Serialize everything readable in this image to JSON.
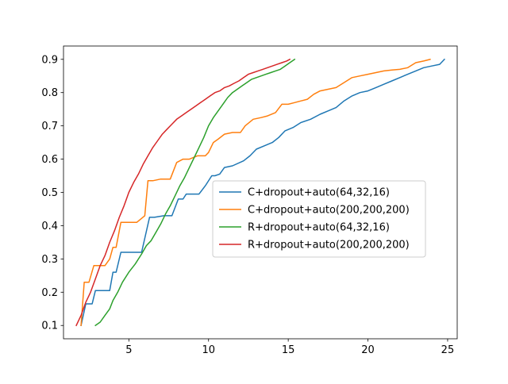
{
  "chart_data": {
    "type": "line",
    "title": "",
    "xlabel": "",
    "ylabel": "",
    "xlim": [
      0.9,
      25.6
    ],
    "ylim": [
      0.06,
      0.94
    ],
    "xticks": [
      5,
      10,
      15,
      20,
      25
    ],
    "xtick_labels": [
      "5",
      "10",
      "15",
      "20",
      "25"
    ],
    "yticks": [
      0.1,
      0.2,
      0.3,
      0.4,
      0.5,
      0.6,
      0.7,
      0.8,
      0.9
    ],
    "ytick_labels": [
      "0.1",
      "0.2",
      "0.3",
      "0.4",
      "0.5",
      "0.6",
      "0.7",
      "0.8",
      "0.9"
    ],
    "grid": false,
    "legend_position": "center-right",
    "series": [
      {
        "name": "C+dropout+auto(64,32,16)",
        "color": "#1f77b4",
        "x": [
          2.0,
          2.3,
          2.7,
          2.9,
          3.1,
          3.4,
          3.8,
          4.0,
          4.2,
          4.5,
          4.6,
          5.2,
          5.8,
          6.3,
          6.6,
          7.2,
          7.7,
          8.1,
          8.4,
          8.6,
          9.1,
          9.4,
          9.8,
          10.2,
          10.4,
          10.7,
          11.0,
          11.5,
          12.2,
          12.6,
          13.0,
          13.5,
          14.0,
          14.4,
          14.8,
          15.3,
          15.8,
          16.4,
          17.0,
          17.5,
          18.0,
          18.5,
          19.0,
          19.5,
          20.0,
          20.5,
          21.0,
          21.5,
          22.0,
          22.5,
          23.0,
          23.5,
          24.0,
          24.5,
          24.8
        ],
        "y": [
          0.1,
          0.165,
          0.165,
          0.205,
          0.205,
          0.205,
          0.205,
          0.26,
          0.26,
          0.32,
          0.32,
          0.32,
          0.32,
          0.425,
          0.425,
          0.43,
          0.43,
          0.48,
          0.48,
          0.495,
          0.495,
          0.495,
          0.52,
          0.55,
          0.55,
          0.555,
          0.575,
          0.58,
          0.595,
          0.61,
          0.63,
          0.64,
          0.65,
          0.665,
          0.685,
          0.695,
          0.71,
          0.72,
          0.735,
          0.745,
          0.755,
          0.775,
          0.79,
          0.8,
          0.805,
          0.815,
          0.825,
          0.835,
          0.845,
          0.855,
          0.865,
          0.875,
          0.88,
          0.885,
          0.9
        ]
      },
      {
        "name": "C+dropout+auto(200,200,200)",
        "color": "#ff7f0e",
        "x": [
          2.0,
          2.2,
          2.5,
          2.8,
          3.0,
          3.5,
          3.8,
          4.0,
          4.2,
          4.5,
          4.6,
          5.0,
          5.5,
          6.0,
          6.2,
          6.5,
          7.0,
          7.3,
          7.6,
          8.0,
          8.4,
          8.8,
          9.3,
          9.8,
          10.0,
          10.3,
          10.6,
          11.0,
          11.5,
          12.0,
          12.3,
          12.8,
          13.3,
          13.7,
          14.2,
          14.6,
          15.0,
          15.4,
          15.8,
          16.2,
          16.6,
          17.0,
          17.5,
          18.0,
          18.5,
          19.0,
          19.5,
          20.0,
          20.5,
          21.0,
          21.5,
          22.0,
          22.5,
          23.0,
          23.5,
          23.9
        ],
        "y": [
          0.1,
          0.23,
          0.23,
          0.28,
          0.28,
          0.28,
          0.3,
          0.335,
          0.335,
          0.41,
          0.41,
          0.41,
          0.41,
          0.43,
          0.535,
          0.535,
          0.54,
          0.54,
          0.54,
          0.59,
          0.6,
          0.6,
          0.61,
          0.61,
          0.62,
          0.65,
          0.66,
          0.675,
          0.68,
          0.68,
          0.7,
          0.72,
          0.725,
          0.73,
          0.74,
          0.765,
          0.765,
          0.77,
          0.775,
          0.78,
          0.795,
          0.805,
          0.81,
          0.815,
          0.83,
          0.845,
          0.85,
          0.855,
          0.86,
          0.865,
          0.868,
          0.87,
          0.875,
          0.89,
          0.895,
          0.9
        ]
      },
      {
        "name": "R+dropout+auto(64,32,16)",
        "color": "#2ca02c",
        "x": [
          2.9,
          3.2,
          3.5,
          3.8,
          4.0,
          4.3,
          4.6,
          5.0,
          5.4,
          5.8,
          6.1,
          6.4,
          6.7,
          7.0,
          7.3,
          7.6,
          7.9,
          8.2,
          8.5,
          8.8,
          9.1,
          9.4,
          9.7,
          10.0,
          10.3,
          10.6,
          10.9,
          11.2,
          11.5,
          11.8,
          12.1,
          12.4,
          12.7,
          13.0,
          13.3,
          13.6,
          13.9,
          14.2,
          14.5,
          14.8,
          15.1,
          15.4
        ],
        "y": [
          0.1,
          0.11,
          0.13,
          0.15,
          0.175,
          0.2,
          0.23,
          0.26,
          0.285,
          0.315,
          0.34,
          0.355,
          0.38,
          0.405,
          0.435,
          0.46,
          0.49,
          0.52,
          0.545,
          0.575,
          0.605,
          0.635,
          0.665,
          0.7,
          0.725,
          0.745,
          0.765,
          0.785,
          0.8,
          0.81,
          0.82,
          0.83,
          0.84,
          0.845,
          0.85,
          0.855,
          0.86,
          0.865,
          0.87,
          0.88,
          0.89,
          0.9
        ]
      },
      {
        "name": "R+dropout+auto(200,200,200)",
        "color": "#d62728",
        "x": [
          1.7,
          2.0,
          2.3,
          2.6,
          2.9,
          3.2,
          3.5,
          3.8,
          4.1,
          4.4,
          4.7,
          5.0,
          5.3,
          5.6,
          5.9,
          6.2,
          6.5,
          6.8,
          7.1,
          7.4,
          7.7,
          8.0,
          8.3,
          8.6,
          8.9,
          9.2,
          9.5,
          9.8,
          10.1,
          10.4,
          10.7,
          11.0,
          11.3,
          11.6,
          11.9,
          12.2,
          12.5,
          12.8,
          13.1,
          13.4,
          13.7,
          14.0,
          14.3,
          14.6,
          14.9,
          15.1
        ],
        "y": [
          0.1,
          0.13,
          0.17,
          0.2,
          0.24,
          0.28,
          0.31,
          0.35,
          0.385,
          0.425,
          0.46,
          0.5,
          0.53,
          0.555,
          0.585,
          0.61,
          0.635,
          0.655,
          0.675,
          0.69,
          0.705,
          0.72,
          0.73,
          0.74,
          0.75,
          0.76,
          0.77,
          0.78,
          0.79,
          0.8,
          0.805,
          0.815,
          0.82,
          0.828,
          0.835,
          0.845,
          0.855,
          0.86,
          0.865,
          0.87,
          0.875,
          0.88,
          0.885,
          0.89,
          0.895,
          0.9
        ]
      }
    ]
  }
}
